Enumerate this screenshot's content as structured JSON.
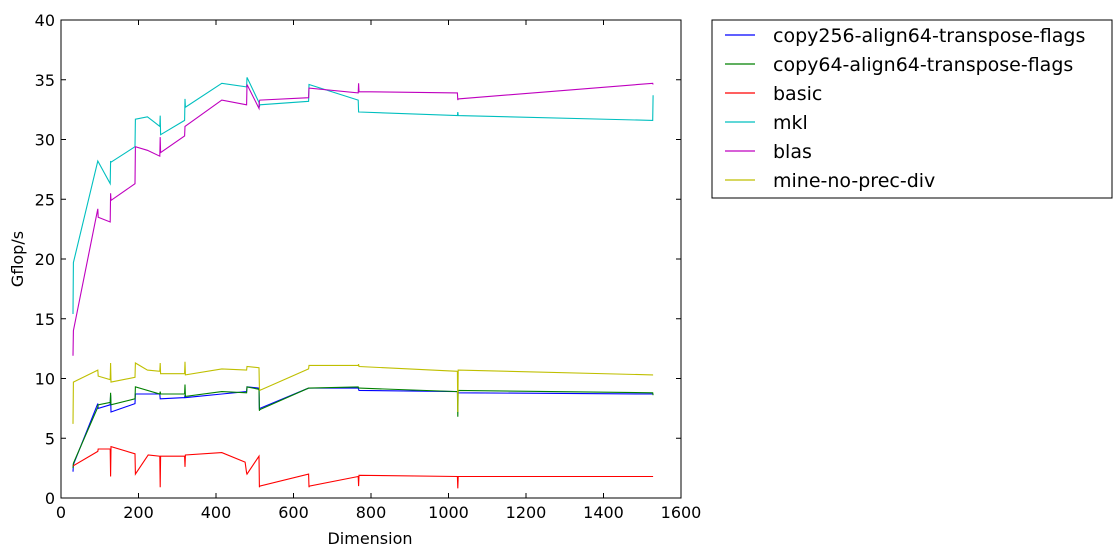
{
  "chart_data": {
    "type": "line",
    "title": "",
    "xlabel": "Dimension",
    "ylabel": "Gflop/s",
    "xlim": [
      0,
      1600
    ],
    "ylim": [
      0,
      40
    ],
    "x_ticks": [
      0,
      200,
      400,
      600,
      800,
      1000,
      1200,
      1400,
      1600
    ],
    "y_ticks": [
      0,
      5,
      10,
      15,
      20,
      25,
      30,
      35,
      40
    ],
    "grid": false,
    "legend_position": "outside-right-top",
    "series": [
      {
        "name": "copy256-align64-transpose-flags",
        "color": "#0000ff",
        "points": [
          [
            31,
            2.2
          ],
          [
            32,
            2.8
          ],
          [
            95,
            7.9
          ],
          [
            96,
            7.5
          ],
          [
            127,
            7.8
          ],
          [
            128,
            8.6
          ],
          [
            129,
            7.2
          ],
          [
            191,
            7.9
          ],
          [
            192,
            8.7
          ],
          [
            255,
            8.7
          ],
          [
            256,
            8.3
          ],
          [
            257,
            8.3
          ],
          [
            319,
            8.4
          ],
          [
            320,
            8.6
          ],
          [
            321,
            8.4
          ],
          [
            415,
            8.7
          ],
          [
            479,
            8.9
          ],
          [
            480,
            9.3
          ],
          [
            511,
            9.2
          ],
          [
            512,
            7.4
          ],
          [
            513,
            7.5
          ],
          [
            639,
            9.2
          ],
          [
            640,
            9.2
          ],
          [
            767,
            9.2
          ],
          [
            768,
            9.1
          ],
          [
            769,
            9.0
          ],
          [
            1023,
            8.9
          ],
          [
            1024,
            8.9
          ],
          [
            1025,
            8.8
          ],
          [
            1527,
            8.7
          ],
          [
            1528,
            8.7
          ]
        ]
      },
      {
        "name": "copy64-align64-transpose-flags",
        "color": "#008000",
        "points": [
          [
            31,
            2.5
          ],
          [
            32,
            2.9
          ],
          [
            95,
            7.6
          ],
          [
            96,
            7.8
          ],
          [
            127,
            8.0
          ],
          [
            128,
            8.8
          ],
          [
            129,
            7.8
          ],
          [
            191,
            8.3
          ],
          [
            192,
            9.3
          ],
          [
            255,
            8.7
          ],
          [
            256,
            8.9
          ],
          [
            257,
            8.7
          ],
          [
            319,
            8.7
          ],
          [
            320,
            9.5
          ],
          [
            321,
            8.5
          ],
          [
            415,
            8.9
          ],
          [
            479,
            8.8
          ],
          [
            480,
            9.3
          ],
          [
            511,
            9.1
          ],
          [
            512,
            7.3
          ],
          [
            513,
            7.4
          ],
          [
            639,
            9.2
          ],
          [
            640,
            9.2
          ],
          [
            767,
            9.3
          ],
          [
            768,
            9.2
          ],
          [
            769,
            9.2
          ],
          [
            1023,
            8.9
          ],
          [
            1024,
            6.8
          ],
          [
            1025,
            9.0
          ],
          [
            1527,
            8.8
          ],
          [
            1528,
            8.6
          ]
        ]
      },
      {
        "name": "basic",
        "color": "#ff0000",
        "points": [
          [
            31,
            2.7
          ],
          [
            32,
            2.7
          ],
          [
            95,
            3.9
          ],
          [
            96,
            4.1
          ],
          [
            127,
            4.1
          ],
          [
            128,
            1.8
          ],
          [
            129,
            4.3
          ],
          [
            191,
            3.7
          ],
          [
            192,
            2.0
          ],
          [
            225,
            3.6
          ],
          [
            255,
            3.5
          ],
          [
            256,
            0.9
          ],
          [
            257,
            3.5
          ],
          [
            319,
            3.5
          ],
          [
            320,
            2.6
          ],
          [
            321,
            3.6
          ],
          [
            415,
            3.8
          ],
          [
            475,
            3.0
          ],
          [
            479,
            2.1
          ],
          [
            480,
            2.0
          ],
          [
            511,
            3.5
          ],
          [
            512,
            0.9
          ],
          [
            513,
            1.0
          ],
          [
            639,
            2.0
          ],
          [
            640,
            0.9
          ],
          [
            641,
            1.0
          ],
          [
            767,
            1.8
          ],
          [
            768,
            1.0
          ],
          [
            769,
            1.9
          ],
          [
            1023,
            1.8
          ],
          [
            1024,
            0.8
          ],
          [
            1025,
            1.8
          ],
          [
            1527,
            1.8
          ],
          [
            1528,
            1.8
          ]
        ]
      },
      {
        "name": "mkl",
        "color": "#00bfbf",
        "points": [
          [
            31,
            15.4
          ],
          [
            32,
            19.7
          ],
          [
            95,
            28.2
          ],
          [
            127,
            26.3
          ],
          [
            128,
            28.2
          ],
          [
            129,
            28.1
          ],
          [
            191,
            29.4
          ],
          [
            192,
            31.7
          ],
          [
            223,
            31.9
          ],
          [
            239,
            31.5
          ],
          [
            255,
            31.1
          ],
          [
            256,
            32.0
          ],
          [
            257,
            30.4
          ],
          [
            319,
            31.6
          ],
          [
            320,
            33.4
          ],
          [
            321,
            32.7
          ],
          [
            415,
            34.7
          ],
          [
            479,
            34.4
          ],
          [
            480,
            35.2
          ],
          [
            511,
            33.1
          ],
          [
            512,
            32.7
          ],
          [
            513,
            32.9
          ],
          [
            639,
            33.2
          ],
          [
            640,
            34.6
          ],
          [
            767,
            33.3
          ],
          [
            768,
            32.3
          ],
          [
            769,
            32.3
          ],
          [
            1023,
            32.0
          ],
          [
            1024,
            32.3
          ],
          [
            1025,
            32.0
          ],
          [
            1527,
            31.6
          ],
          [
            1528,
            33.7
          ]
        ]
      },
      {
        "name": "blas",
        "color": "#bf00bf",
        "points": [
          [
            31,
            11.9
          ],
          [
            32,
            14.0
          ],
          [
            95,
            24.2
          ],
          [
            96,
            23.5
          ],
          [
            127,
            23.1
          ],
          [
            128,
            25.5
          ],
          [
            129,
            24.9
          ],
          [
            191,
            26.3
          ],
          [
            192,
            29.4
          ],
          [
            223,
            29.1
          ],
          [
            255,
            28.6
          ],
          [
            256,
            30.2
          ],
          [
            257,
            28.9
          ],
          [
            319,
            30.3
          ],
          [
            320,
            31.1
          ],
          [
            415,
            33.3
          ],
          [
            479,
            32.9
          ],
          [
            480,
            34.6
          ],
          [
            511,
            32.6
          ],
          [
            512,
            33.2
          ],
          [
            513,
            33.3
          ],
          [
            639,
            33.5
          ],
          [
            640,
            34.3
          ],
          [
            767,
            33.9
          ],
          [
            768,
            34.7
          ],
          [
            769,
            34.0
          ],
          [
            1023,
            33.9
          ],
          [
            1024,
            33.3
          ],
          [
            1025,
            33.4
          ],
          [
            1527,
            34.7
          ],
          [
            1528,
            34.6
          ]
        ]
      },
      {
        "name": "mine-no-prec-div",
        "color": "#bfbf00",
        "points": [
          [
            31,
            6.2
          ],
          [
            32,
            9.7
          ],
          [
            95,
            10.7
          ],
          [
            96,
            10.2
          ],
          [
            127,
            9.9
          ],
          [
            128,
            11.3
          ],
          [
            129,
            9.7
          ],
          [
            191,
            10.1
          ],
          [
            192,
            11.3
          ],
          [
            223,
            10.7
          ],
          [
            255,
            10.6
          ],
          [
            256,
            11.3
          ],
          [
            257,
            10.4
          ],
          [
            319,
            10.4
          ],
          [
            320,
            11.4
          ],
          [
            321,
            10.3
          ],
          [
            415,
            10.8
          ],
          [
            479,
            10.7
          ],
          [
            480,
            11.0
          ],
          [
            511,
            10.9
          ],
          [
            512,
            9.2
          ],
          [
            513,
            9.0
          ],
          [
            639,
            10.8
          ],
          [
            640,
            11.1
          ],
          [
            767,
            11.1
          ],
          [
            768,
            11.2
          ],
          [
            769,
            11.0
          ],
          [
            1023,
            10.6
          ],
          [
            1024,
            7.2
          ],
          [
            1025,
            10.7
          ],
          [
            1527,
            10.3
          ],
          [
            1528,
            10.3
          ]
        ]
      }
    ]
  }
}
